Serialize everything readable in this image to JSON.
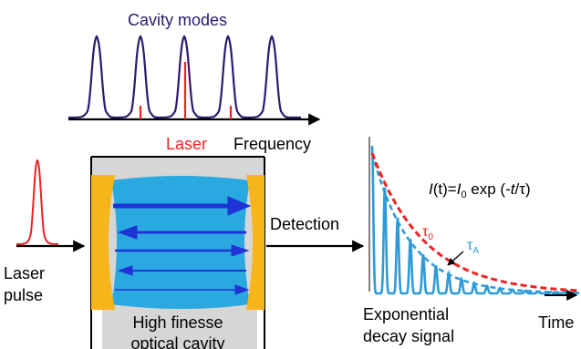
{
  "labels": {
    "cavity_modes": "Cavity modes",
    "laser": "Laser",
    "frequency": "Frequency",
    "laser_pulse_line1": "Laser",
    "laser_pulse_line2": "pulse",
    "detection": "Detection",
    "cavity_line1": "High finesse",
    "cavity_line2": "optical cavity",
    "decay_line1": "Exponential",
    "decay_line2": "decay signal",
    "time": "Time",
    "tau0": "τ",
    "tau0_sub": "0",
    "tauA": "τ",
    "tauA_sub": "A"
  },
  "equation": {
    "I": "I",
    "t": "(t)=",
    "I0": "I",
    "I0_sub": "0",
    "rest": " exp (-",
    "t2": "t",
    "slash_tau": "/τ)"
  },
  "colors": {
    "navy": "#2b1a6e",
    "red": "#ee2222",
    "cavity_blue": "#29a9e0",
    "mirror_orange": "#f7b51c",
    "arrow_blue": "#1f34d6",
    "signal_blue": "#2e9bd6",
    "grey_box": "#d6d6d6"
  }
}
